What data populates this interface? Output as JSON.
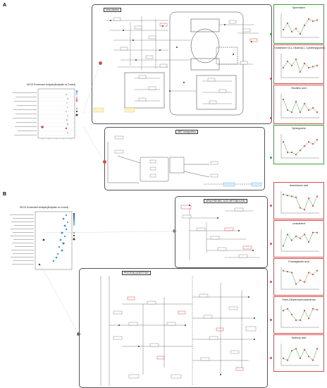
{
  "panels": {
    "a": {
      "letter": "A",
      "enrichment_title": "KEGG Enrichment Analysis(Bodyside vs Control)",
      "pathways": {
        "top": "beta-Alanine",
        "bottom": "ABC transporters"
      },
      "charts": [
        {
          "title": "Spermidine",
          "border": "#3aa33a"
        },
        {
          "title": "Glutathione (5-L-Glutamyl-L-Cysteinylglycine)",
          "border": "#d94b4b"
        },
        {
          "title": "Nicotinic acid",
          "border": "#d94b4b"
        },
        {
          "title": "Sphingosine",
          "border": "#3aa33a"
        }
      ]
    },
    "b": {
      "letter": "B",
      "enrichment_title": "KEGG Enrichment Analysis(Bodyside vs Control)",
      "pathways": {
        "top": "ARACHIDONIC ACID METABOLISM",
        "bottom": "PROTEIN DIGESTION"
      },
      "charts": [
        {
          "title": "Arachidonic acid",
          "border": "#d94b4b"
        },
        {
          "title": "Leukotriene",
          "border": "#d94b4b"
        },
        {
          "title": "Prostaglandin acid",
          "border": "#d94b4b"
        },
        {
          "title": "Trans-Dihydroxyeicosatrienoic",
          "border": "#d94b4b"
        },
        {
          "title": "Hydroxy acid",
          "border": "#d94b4b"
        }
      ]
    }
  },
  "colors": {
    "up": "#d94b4b",
    "down": "#3aa33a",
    "dot_blue": "#3c8fd0",
    "link_line": "#9a9a9a"
  }
}
